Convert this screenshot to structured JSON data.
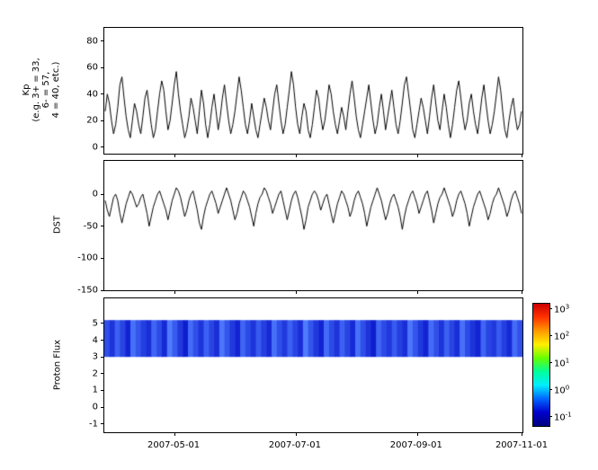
{
  "figure": {
    "background": "#ffffff",
    "plot_border_color": "#000000",
    "line_color": "#000000"
  },
  "x_axis": {
    "tick_labels": [
      "2007-05-01",
      "2007-07-01",
      "2007-09-01",
      "2007-11-01"
    ],
    "tick_positions": [
      0.168,
      0.458,
      0.748,
      1.0
    ]
  },
  "chart_data": [
    {
      "id": "kp",
      "type": "line",
      "ylabel": "Kp (e.g. 3+ = 33, 6- = 57, 4 = 40, etc.)",
      "ylabel_lines": [
        "Kp",
        "(e.g. 3+ = 33,",
        "6- = 57,",
        "4 = 40, etc.)"
      ],
      "ylim": [
        -5,
        90
      ],
      "yticks": [
        0,
        20,
        40,
        60,
        80
      ],
      "series": [
        {
          "name": "Kp",
          "color": "#000000",
          "values": [
            27,
            40,
            33,
            20,
            10,
            17,
            30,
            47,
            53,
            37,
            23,
            13,
            7,
            20,
            33,
            27,
            17,
            10,
            23,
            37,
            43,
            30,
            17,
            7,
            13,
            27,
            40,
            50,
            43,
            27,
            13,
            20,
            33,
            47,
            57,
            40,
            27,
            17,
            7,
            13,
            23,
            37,
            30,
            20,
            10,
            27,
            43,
            33,
            17,
            7,
            17,
            30,
            40,
            27,
            13,
            23,
            37,
            47,
            33,
            20,
            10,
            17,
            27,
            40,
            53,
            43,
            30,
            17,
            10,
            20,
            33,
            23,
            13,
            7,
            17,
            27,
            37,
            30,
            20,
            13,
            27,
            40,
            47,
            33,
            20,
            10,
            17,
            30,
            43,
            57,
            47,
            30,
            17,
            10,
            23,
            33,
            27,
            13,
            7,
            17,
            30,
            43,
            37,
            23,
            13,
            20,
            33,
            47,
            40,
            27,
            17,
            10,
            20,
            30,
            23,
            13,
            27,
            40,
            50,
            37,
            23,
            13,
            7,
            17,
            27,
            37,
            47,
            33,
            20,
            10,
            17,
            30,
            40,
            27,
            13,
            23,
            33,
            43,
            30,
            17,
            10,
            20,
            33,
            47,
            53,
            40,
            27,
            13,
            7,
            17,
            27,
            37,
            30,
            20,
            10,
            23,
            37,
            47,
            33,
            20,
            13,
            27,
            40,
            30,
            17,
            7,
            17,
            30,
            43,
            50,
            37,
            23,
            13,
            20,
            33,
            40,
            27,
            17,
            10,
            23,
            37,
            47,
            33,
            20,
            10,
            17,
            27,
            40,
            53,
            43,
            27,
            13,
            7,
            20,
            30,
            37,
            23,
            13,
            17,
            27
          ]
        }
      ]
    },
    {
      "id": "dst",
      "type": "line",
      "ylabel": "DST",
      "ylim": [
        -150,
        52
      ],
      "yticks": [
        0,
        -50,
        -100,
        -150
      ],
      "series": [
        {
          "name": "DST",
          "color": "#000000",
          "values": [
            -10,
            -25,
            -35,
            -20,
            -5,
            0,
            -10,
            -30,
            -45,
            -30,
            -15,
            -5,
            5,
            0,
            -10,
            -20,
            -15,
            -5,
            0,
            -15,
            -30,
            -50,
            -35,
            -20,
            -10,
            0,
            5,
            -5,
            -15,
            -25,
            -40,
            -25,
            -10,
            0,
            10,
            5,
            -5,
            -20,
            -35,
            -25,
            -10,
            0,
            5,
            -10,
            -25,
            -45,
            -55,
            -35,
            -20,
            -10,
            0,
            5,
            -5,
            -15,
            -30,
            -20,
            -10,
            0,
            10,
            0,
            -10,
            -25,
            -40,
            -30,
            -15,
            -5,
            5,
            0,
            -10,
            -20,
            -35,
            -50,
            -30,
            -15,
            -5,
            0,
            10,
            5,
            -5,
            -15,
            -30,
            -20,
            -10,
            0,
            5,
            -10,
            -25,
            -40,
            -25,
            -10,
            0,
            5,
            -5,
            -20,
            -35,
            -55,
            -40,
            -20,
            -10,
            0,
            5,
            0,
            -10,
            -25,
            -15,
            -5,
            0,
            -15,
            -30,
            -45,
            -30,
            -15,
            -5,
            5,
            0,
            -10,
            -20,
            -35,
            -25,
            -10,
            0,
            5,
            -5,
            -15,
            -30,
            -50,
            -35,
            -20,
            -10,
            0,
            10,
            0,
            -10,
            -25,
            -40,
            -30,
            -15,
            -5,
            0,
            -10,
            -20,
            -35,
            -55,
            -35,
            -20,
            -10,
            0,
            5,
            -5,
            -15,
            -30,
            -20,
            -10,
            0,
            5,
            -10,
            -25,
            -45,
            -30,
            -15,
            -5,
            0,
            10,
            0,
            -10,
            -20,
            -35,
            -25,
            -10,
            0,
            5,
            -5,
            -15,
            -30,
            -50,
            -35,
            -20,
            -10,
            0,
            5,
            -5,
            -15,
            -25,
            -40,
            -30,
            -15,
            -5,
            0,
            10,
            0,
            -10,
            -20,
            -35,
            -25,
            -10,
            0,
            5,
            -5,
            -15,
            -30
          ]
        }
      ]
    },
    {
      "id": "proton",
      "type": "heatmap",
      "ylabel": "Proton Flux",
      "ylim": [
        -1.5,
        6.5
      ],
      "yticks": [
        5,
        4,
        3,
        2,
        1,
        0,
        -1
      ],
      "band": {
        "y_min": 3.0,
        "y_max": 5.2,
        "color_low": "#0d1ecf",
        "color_high": "#4f7bff",
        "flux_values": [
          0.32,
          0.27,
          0.35,
          0.3,
          0.24,
          0.38,
          0.33,
          0.29,
          0.26,
          0.36,
          0.31,
          0.25,
          0.4,
          0.34,
          0.28,
          0.23,
          0.37,
          0.32,
          0.27,
          0.35,
          0.3,
          0.26,
          0.39,
          0.33,
          0.28,
          0.24,
          0.36,
          0.31,
          0.27,
          0.34,
          0.29,
          0.25,
          0.38,
          0.32,
          0.28,
          0.35,
          0.3,
          0.26,
          0.4,
          0.33,
          0.28,
          0.24,
          0.37,
          0.31,
          0.27,
          0.35,
          0.3,
          0.25,
          0.38,
          0.32,
          0.27,
          0.23,
          0.36,
          0.31,
          0.28,
          0.34,
          0.29,
          0.26,
          0.39,
          0.33,
          0.28,
          0.24,
          0.37,
          0.32,
          0.27,
          0.35,
          0.3,
          0.26,
          0.38,
          0.31,
          0.27,
          0.24,
          0.36,
          0.3,
          0.28,
          0.34,
          0.29,
          0.25,
          0.37,
          0.32
        ]
      },
      "colorbar": {
        "scale": "log",
        "range_log10": [
          -1.35,
          3.2
        ],
        "tick_exponents": [
          3,
          2,
          1,
          0,
          -1
        ],
        "gradient_colors": [
          "#cc0000",
          "#ff3300",
          "#ff9900",
          "#ffee00",
          "#66ff00",
          "#00ff99",
          "#00eeff",
          "#0066ff",
          "#0000cc",
          "#000080"
        ]
      }
    }
  ]
}
